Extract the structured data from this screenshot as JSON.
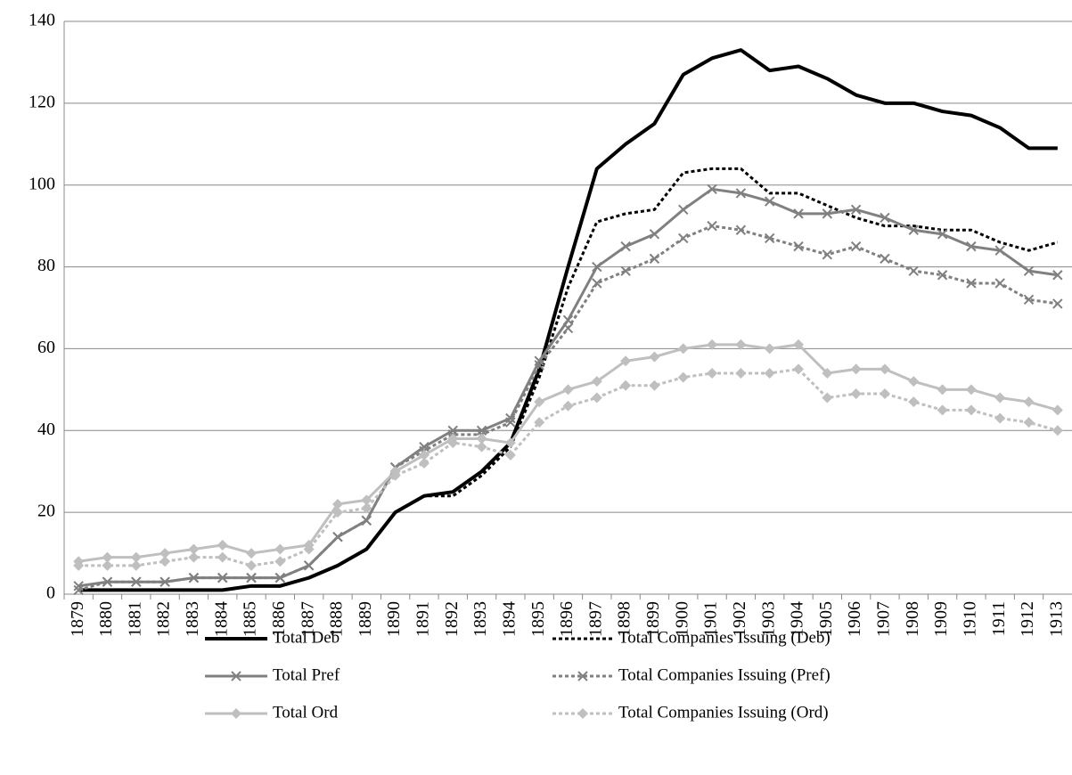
{
  "chart_data": {
    "type": "line",
    "categories": [
      "1879",
      "1880",
      "1881",
      "1882",
      "1883",
      "1884",
      "1885",
      "1886",
      "1887",
      "1888",
      "1889",
      "1890",
      "1891",
      "1892",
      "1893",
      "1894",
      "1895",
      "1896",
      "1897",
      "1898",
      "1899",
      "1900",
      "1901",
      "1902",
      "1903",
      "1904",
      "1905",
      "1906",
      "1907",
      "1908",
      "1909",
      "1910",
      "1911",
      "1912",
      "1913"
    ],
    "ylim": [
      0,
      140
    ],
    "yticks": [
      0,
      20,
      40,
      60,
      80,
      100,
      120,
      140
    ],
    "grid": true,
    "series": [
      {
        "name": "Total Deb",
        "color": "#000000",
        "dash": "solid",
        "marker": "none",
        "values": [
          1,
          1,
          1,
          1,
          1,
          1,
          2,
          2,
          4,
          7,
          11,
          20,
          24,
          25,
          30,
          37,
          55,
          80,
          104,
          110,
          115,
          127,
          131,
          133,
          128,
          129,
          126,
          122,
          120,
          120,
          118,
          117,
          114,
          109,
          109
        ]
      },
      {
        "name": "Total Companies Issuing (Deb)",
        "color": "#000000",
        "dash": "dotted",
        "marker": "none",
        "values": [
          1,
          1,
          1,
          1,
          1,
          1,
          2,
          2,
          4,
          7,
          11,
          20,
          24,
          24,
          29,
          36,
          53,
          75,
          91,
          93,
          94,
          103,
          104,
          104,
          98,
          98,
          95,
          92,
          90,
          90,
          89,
          89,
          86,
          84,
          86
        ]
      },
      {
        "name": "Total Pref",
        "color": "#808080",
        "dash": "solid",
        "marker": "x",
        "values": [
          2,
          3,
          3,
          3,
          4,
          4,
          4,
          4,
          7,
          14,
          18,
          31,
          36,
          40,
          40,
          43,
          57,
          67,
          80,
          85,
          88,
          94,
          99,
          98,
          96,
          93,
          93,
          94,
          92,
          89,
          88,
          85,
          84,
          79,
          78
        ]
      },
      {
        "name": "Total Companies Issuing (Pref)",
        "color": "#808080",
        "dash": "dotted",
        "marker": "x",
        "values": [
          1,
          3,
          3,
          3,
          4,
          4,
          4,
          4,
          7,
          14,
          18,
          31,
          35,
          39,
          39,
          42,
          56,
          65,
          76,
          79,
          82,
          87,
          90,
          89,
          87,
          85,
          83,
          85,
          82,
          79,
          78,
          76,
          76,
          72,
          71
        ]
      },
      {
        "name": "Total Ord",
        "color": "#bfbfbf",
        "dash": "solid",
        "marker": "diamond",
        "values": [
          8,
          9,
          9,
          10,
          11,
          12,
          10,
          11,
          12,
          22,
          23,
          30,
          34,
          38,
          38,
          37,
          47,
          50,
          52,
          57,
          58,
          60,
          61,
          61,
          60,
          61,
          54,
          55,
          55,
          52,
          50,
          50,
          48,
          47,
          45
        ]
      },
      {
        "name": "Total Companies Issuing (Ord)",
        "color": "#bfbfbf",
        "dash": "dotted",
        "marker": "diamond",
        "values": [
          7,
          7,
          7,
          8,
          9,
          9,
          7,
          8,
          11,
          20,
          21,
          29,
          32,
          37,
          36,
          34,
          42,
          46,
          48,
          51,
          51,
          53,
          54,
          54,
          54,
          55,
          48,
          49,
          49,
          47,
          45,
          45,
          43,
          42,
          40
        ]
      }
    ]
  }
}
